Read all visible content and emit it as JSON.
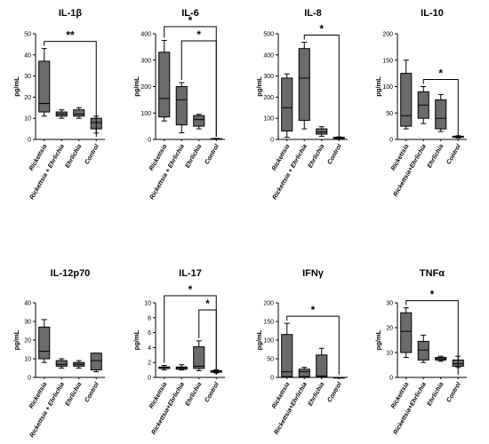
{
  "chart_data": [
    {
      "type": "box",
      "title": "IL-1β",
      "ylabel": "pg/mL",
      "ylim": [
        0,
        50
      ],
      "yticks": [
        0,
        10,
        20,
        30,
        40,
        50
      ],
      "categories": [
        "Rickettsia",
        "Rickettsia + Ehrlichia",
        "Ehrlichia",
        "Control"
      ],
      "boxes": [
        {
          "min": 11,
          "q1": 13,
          "median": 17,
          "q3": 37,
          "max": 43
        },
        {
          "min": 10,
          "q1": 11,
          "median": 12,
          "q3": 13,
          "max": 14
        },
        {
          "min": 10,
          "q1": 11,
          "median": 12,
          "q3": 14,
          "max": 15
        },
        {
          "min": 3,
          "q1": 5,
          "median": 8,
          "q3": 10,
          "max": 11
        }
      ],
      "comparisons": [
        {
          "from": 0,
          "to": 3,
          "label": "**"
        }
      ]
    },
    {
      "type": "box",
      "title": "IL-6",
      "ylabel": "pg/mL",
      "ylim": [
        0,
        400
      ],
      "yticks": [
        0,
        100,
        200,
        300,
        400
      ],
      "categories": [
        "Rickettsia",
        "Rickettsia + Ehrlichia",
        "Ehrlichia",
        "Control"
      ],
      "boxes": [
        {
          "min": 70,
          "q1": 85,
          "median": 155,
          "q3": 330,
          "max": 375
        },
        {
          "min": 25,
          "q1": 55,
          "median": 150,
          "q3": 200,
          "max": 215
        },
        {
          "min": 40,
          "q1": 50,
          "median": 75,
          "q3": 90,
          "max": 95
        },
        {
          "min": 0,
          "q1": 1,
          "median": 2,
          "q3": 3,
          "max": 4
        }
      ],
      "comparisons": [
        {
          "from": 0,
          "to": 3,
          "label": "*"
        },
        {
          "from": 1,
          "to": 3,
          "label": "*"
        }
      ]
    },
    {
      "type": "box",
      "title": "IL-8",
      "ylabel": "pg/mL",
      "ylim": [
        0,
        500
      ],
      "yticks": [
        0,
        100,
        200,
        300,
        400,
        500
      ],
      "categories": [
        "Rickettsia",
        "Rickettsia + Ehrlichia",
        "Ehrlichia",
        "Control"
      ],
      "boxes": [
        {
          "min": 10,
          "q1": 40,
          "median": 150,
          "q3": 290,
          "max": 310
        },
        {
          "min": 50,
          "q1": 90,
          "median": 290,
          "q3": 430,
          "max": 460
        },
        {
          "min": 15,
          "q1": 25,
          "median": 35,
          "q3": 50,
          "max": 60
        },
        {
          "min": 2,
          "q1": 5,
          "median": 8,
          "q3": 10,
          "max": 12
        }
      ],
      "comparisons": [
        {
          "from": 1,
          "to": 3,
          "label": "*"
        }
      ]
    },
    {
      "type": "box",
      "title": "IL-10",
      "ylabel": "pg/mL",
      "ylim": [
        0,
        200
      ],
      "yticks": [
        0,
        50,
        100,
        150,
        200
      ],
      "categories": [
        "Rickettsia",
        "Rickettsia+Ehrlichia",
        "Ehrlichia",
        "Control"
      ],
      "boxes": [
        {
          "min": 20,
          "q1": 25,
          "median": 45,
          "q3": 125,
          "max": 150
        },
        {
          "min": 30,
          "q1": 40,
          "median": 65,
          "q3": 90,
          "max": 100
        },
        {
          "min": 15,
          "q1": 20,
          "median": 40,
          "q3": 75,
          "max": 85
        },
        {
          "min": 3,
          "q1": 4,
          "median": 5,
          "q3": 6,
          "max": 7
        }
      ],
      "comparisons": [
        {
          "from": 1,
          "to": 3,
          "label": "*"
        }
      ]
    },
    {
      "type": "box",
      "title": "IL-12p70",
      "ylabel": "pg/mL",
      "ylim": [
        0,
        40
      ],
      "yticks": [
        0,
        10,
        20,
        30,
        40
      ],
      "categories": [
        "Rickettsia",
        "Rickettsia + Ehrlichia",
        "Ehrlichia",
        "Control"
      ],
      "boxes": [
        {
          "min": 8,
          "q1": 10,
          "median": 14,
          "q3": 27,
          "max": 31
        },
        {
          "min": 5,
          "q1": 6,
          "median": 7,
          "q3": 9,
          "max": 10
        },
        {
          "min": 5,
          "q1": 6,
          "median": 7,
          "q3": 8,
          "max": 9
        },
        {
          "min": 3,
          "q1": 4,
          "median": 9,
          "q3": 13,
          "max": 13
        }
      ],
      "comparisons": []
    },
    {
      "type": "box",
      "title": "IL-17",
      "ylabel": "pg/mL",
      "ylim": [
        0,
        10
      ],
      "yticks": [
        0,
        2,
        4,
        6,
        8,
        10
      ],
      "categories": [
        "Rickettsia",
        "Rickettsia+Ehrlichia",
        "Ehrlichia",
        "Control"
      ],
      "boxes": [
        {
          "min": 1.0,
          "q1": 1.2,
          "median": 1.3,
          "q3": 1.4,
          "max": 1.6
        },
        {
          "min": 1.0,
          "q1": 1.1,
          "median": 1.3,
          "q3": 1.4,
          "max": 1.7
        },
        {
          "min": 0.9,
          "q1": 1.2,
          "median": 1.5,
          "q3": 4.1,
          "max": 4.9
        },
        {
          "min": 0.6,
          "q1": 0.7,
          "median": 0.8,
          "q3": 0.9,
          "max": 1.0
        }
      ],
      "comparisons": [
        {
          "from": 0,
          "to": 3,
          "label": "*"
        },
        {
          "from": 2,
          "to": 3,
          "label": "*"
        }
      ]
    },
    {
      "type": "box",
      "title": "IFNγ",
      "ylabel": "pg/mL",
      "ylim": [
        0,
        200
      ],
      "yticks": [
        0,
        50,
        100,
        150,
        200
      ],
      "categories": [
        "Rickettsia",
        "Rickettsia+Ehrlichia",
        "Ehrlichia",
        "Control"
      ],
      "boxes": [
        {
          "min": 0,
          "q1": 2,
          "median": 15,
          "q3": 115,
          "max": 145
        },
        {
          "min": 0,
          "q1": 2,
          "median": 15,
          "q3": 22,
          "max": 27
        },
        {
          "min": 0,
          "q1": 1,
          "median": 4,
          "q3": 60,
          "max": 78
        },
        {
          "min": 0,
          "q1": 0,
          "median": 0,
          "q3": 0,
          "max": 0
        }
      ],
      "comparisons": [
        {
          "from": 0,
          "to": 3,
          "label": "*"
        }
      ]
    },
    {
      "type": "box",
      "title": "TNFα",
      "ylabel": "pg/mL",
      "ylim": [
        0,
        30
      ],
      "yticks": [
        0,
        10,
        20,
        30
      ],
      "categories": [
        "Rickettsia",
        "Rickettsia+Ehrlichia",
        "Ehrlichia",
        "Control"
      ],
      "boxes": [
        {
          "min": 8,
          "q1": 10,
          "median": 18.5,
          "q3": 26,
          "max": 28
        },
        {
          "min": 6,
          "q1": 7,
          "median": 11,
          "q3": 14.5,
          "max": 17
        },
        {
          "min": 6.5,
          "q1": 7,
          "median": 7.5,
          "q3": 8,
          "max": 8.5
        },
        {
          "min": 4,
          "q1": 4.5,
          "median": 5.5,
          "q3": 7,
          "max": 8.5
        }
      ],
      "comparisons": [
        {
          "from": 0,
          "to": 3,
          "label": "*"
        }
      ]
    }
  ]
}
